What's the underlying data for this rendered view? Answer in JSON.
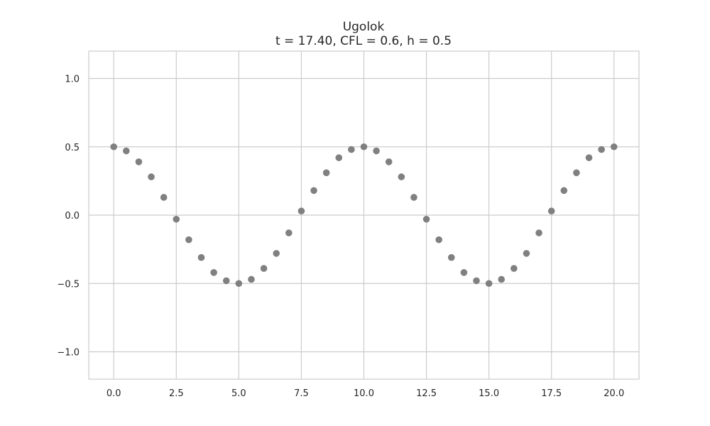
{
  "chart_data": {
    "type": "scatter",
    "title": "Ugolok",
    "subtitle": "t = 17.40, CFL = 0.6, h = 0.5",
    "xlabel": "",
    "ylabel": "",
    "xlim": [
      -1.0,
      21.0
    ],
    "ylim": [
      -1.2,
      1.2
    ],
    "x_ticks": [
      0.0,
      2.5,
      5.0,
      7.5,
      10.0,
      12.5,
      15.0,
      17.5,
      20.0
    ],
    "x_tick_labels": [
      "0.0",
      "2.5",
      "5.0",
      "7.5",
      "10.0",
      "12.5",
      "15.0",
      "17.5",
      "20.0"
    ],
    "y_ticks": [
      -1.0,
      -0.5,
      0.0,
      0.5,
      1.0
    ],
    "y_tick_labels": [
      "−1.0",
      "−0.5",
      "0.0",
      "0.5",
      "1.0"
    ],
    "grid": true,
    "marker_color": "#808080",
    "series": [
      {
        "x": [
          0.0,
          0.5,
          1.0,
          1.5,
          2.0,
          2.5,
          3.0,
          3.5,
          4.0,
          4.5,
          5.0,
          5.5,
          6.0,
          6.5,
          7.0,
          7.5,
          8.0,
          8.5,
          9.0,
          9.5,
          10.0,
          10.5,
          11.0,
          11.5,
          12.0,
          12.5,
          13.0,
          13.5,
          14.0,
          14.5,
          15.0,
          15.5,
          16.0,
          16.5,
          17.0,
          17.5,
          18.0,
          18.5,
          19.0,
          19.5,
          20.0
        ],
        "y": [
          0.5,
          0.47,
          0.39,
          0.28,
          0.13,
          -0.03,
          -0.18,
          -0.31,
          -0.42,
          -0.48,
          -0.5,
          -0.47,
          -0.39,
          -0.28,
          -0.13,
          0.03,
          0.18,
          0.31,
          0.42,
          0.48,
          0.5,
          0.47,
          0.39,
          0.28,
          0.13,
          -0.03,
          -0.18,
          -0.31,
          -0.42,
          -0.48,
          -0.5,
          -0.47,
          -0.39,
          -0.28,
          -0.13,
          0.03,
          0.18,
          0.31,
          0.42,
          0.48,
          0.5
        ]
      }
    ]
  }
}
